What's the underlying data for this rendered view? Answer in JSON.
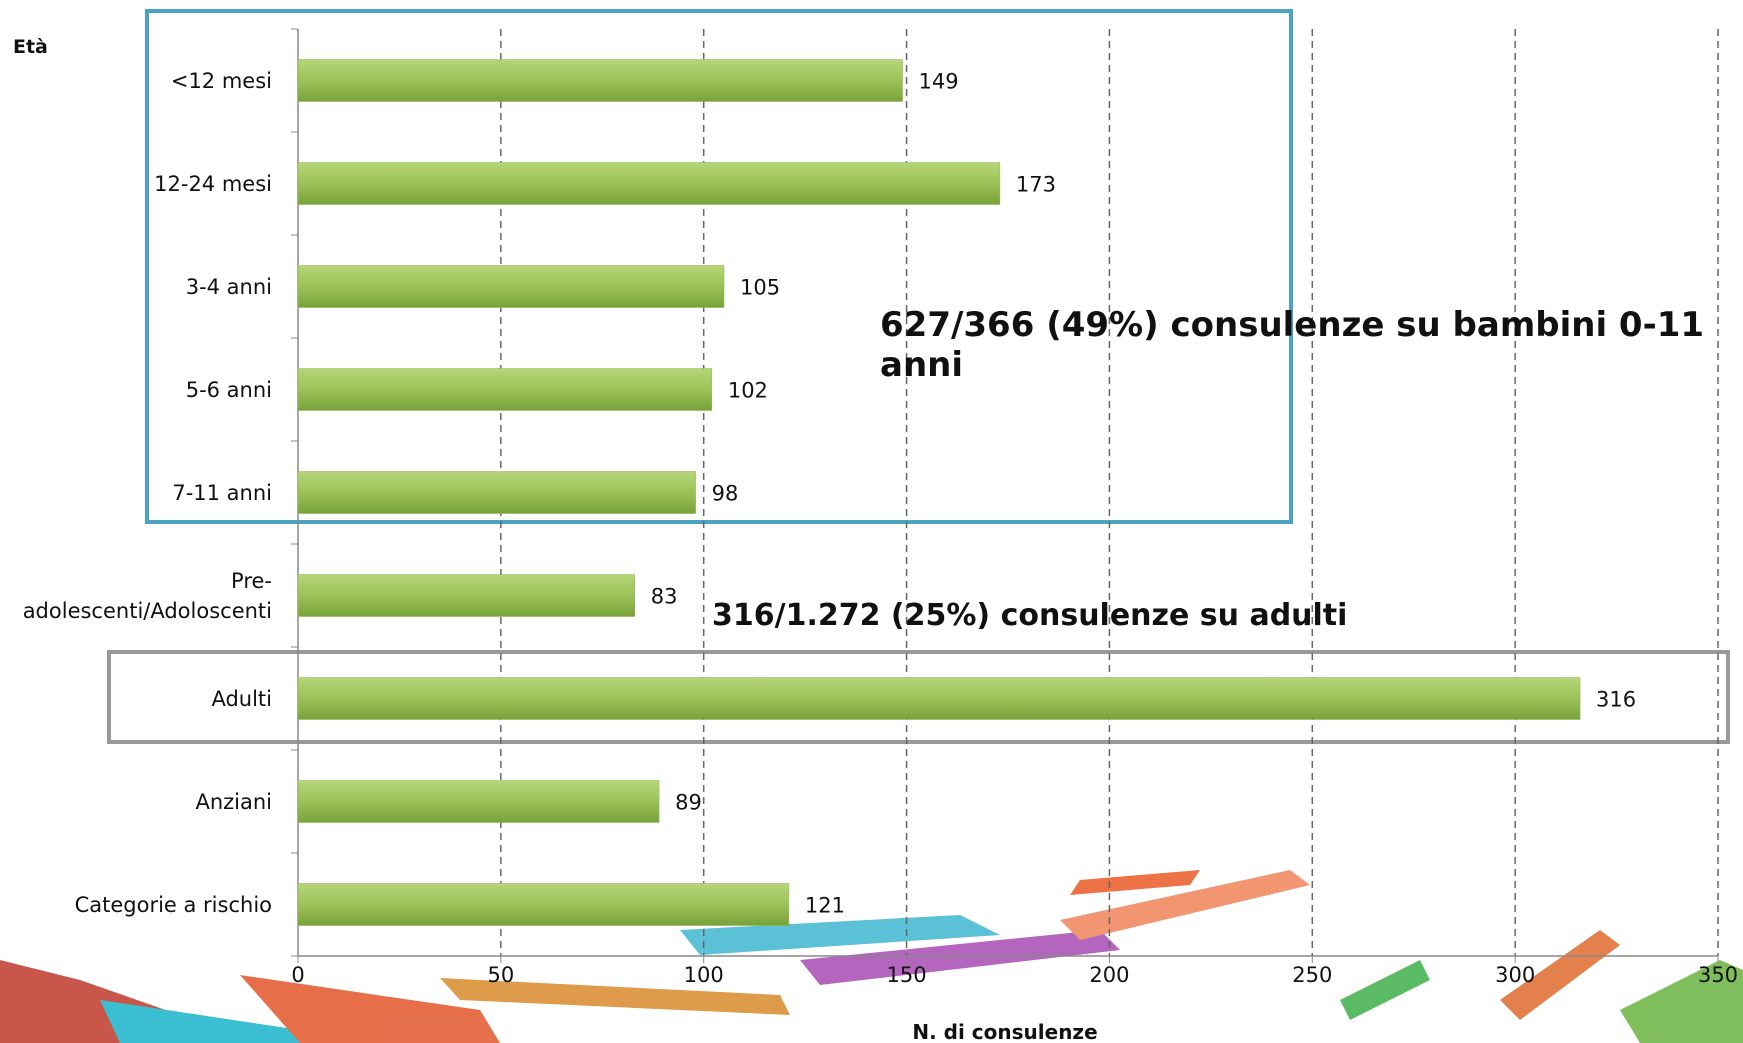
{
  "chart_data": {
    "type": "bar",
    "orientation": "horizontal",
    "y_label": "Età",
    "x_label": "N. di consulenze",
    "categories": [
      "<12 mesi",
      "12-24 mesi",
      "3-4 anni",
      "5-6 anni",
      "7-11 anni",
      "Pre-adolescenti/Adoloscenti",
      "Adulti",
      "Anziani",
      "Categorie a rischio"
    ],
    "values": [
      149,
      173,
      105,
      102,
      98,
      83,
      316,
      89,
      121
    ],
    "color": "#8fb84a",
    "xlim": [
      0,
      350
    ],
    "xticks": [
      0,
      50,
      100,
      150,
      200,
      250,
      300,
      350
    ],
    "grid": true,
    "annotations": [
      "627/366 (49%) consulenze su bambini 0-11 anni",
      "316/1.272 (25%) consulenze su adulti"
    ]
  }
}
